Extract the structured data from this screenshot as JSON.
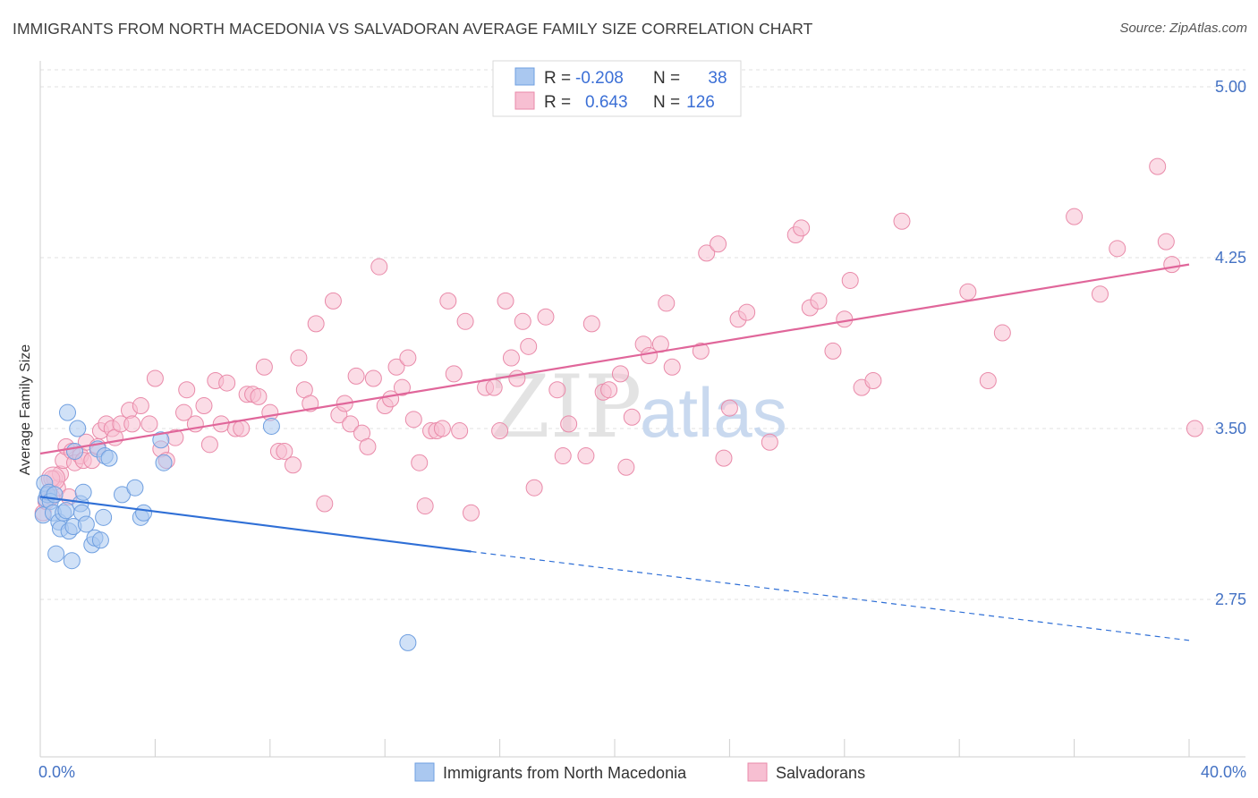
{
  "title": "IMMIGRANTS FROM NORTH MACEDONIA VS SALVADORAN AVERAGE FAMILY SIZE CORRELATION CHART",
  "source": "Source: ZipAtlas.com",
  "watermark": {
    "zip": "ZIP",
    "atlas": "atlas"
  },
  "legend_box": {
    "rows": [
      {
        "r_label": "R =",
        "r_value": "-0.208",
        "n_label": "N =",
        "n_value": "38",
        "color": "#aac8f0",
        "stroke": "#6f9fe0"
      },
      {
        "r_label": "R =",
        "r_value": "0.643",
        "n_label": "N =",
        "n_value": "126",
        "color": "#f7bfd2",
        "stroke": "#e98aa9"
      }
    ]
  },
  "bottom_legend": {
    "items": [
      {
        "label": "Immigrants from North Macedonia",
        "color": "#aac8f0",
        "stroke": "#6f9fe0"
      },
      {
        "label": "Salvadorans",
        "color": "#f7bfd2",
        "stroke": "#e98aa9"
      }
    ]
  },
  "chart_data": {
    "type": "scatter",
    "title": "IMMIGRANTS FROM NORTH MACEDONIA VS SALVADORAN AVERAGE FAMILY SIZE CORRELATION CHART",
    "xlabel": "",
    "ylabel": "Average Family Size",
    "xlim": [
      0,
      40
    ],
    "ylim": [
      2.2,
      5.1
    ],
    "x_tick_labels": [
      "0.0%",
      "40.0%"
    ],
    "y_ticks": [
      2.75,
      3.5,
      4.25,
      5.0
    ],
    "y_tick_labels": [
      "2.75",
      "3.50",
      "4.25",
      "5.00"
    ],
    "grid": true,
    "series": [
      {
        "name": "Immigrants from North Macedonia",
        "color": "#aac8f0",
        "stroke": "#6f9fe0",
        "trend": {
          "x0": 0.0,
          "y0": 3.2,
          "x1": 15.0,
          "y1": 2.96,
          "dash_to_x": 40.0,
          "dash_to_y": 2.57,
          "color": "#2f6fd6"
        },
        "points": [
          [
            0.1,
            3.12
          ],
          [
            0.15,
            3.26
          ],
          [
            0.2,
            3.19
          ],
          [
            0.25,
            3.21
          ],
          [
            0.3,
            3.22
          ],
          [
            0.35,
            3.18
          ],
          [
            0.45,
            3.13
          ],
          [
            0.55,
            2.95
          ],
          [
            0.65,
            3.09
          ],
          [
            0.7,
            3.06
          ],
          [
            0.8,
            3.13
          ],
          [
            0.9,
            3.14
          ],
          [
            1.0,
            3.05
          ],
          [
            1.1,
            2.92
          ],
          [
            1.15,
            3.07
          ],
          [
            1.2,
            3.4
          ],
          [
            1.3,
            3.5
          ],
          [
            1.4,
            3.17
          ],
          [
            1.45,
            3.13
          ],
          [
            1.5,
            3.22
          ],
          [
            0.95,
            3.57
          ],
          [
            1.8,
            2.99
          ],
          [
            1.9,
            3.02
          ],
          [
            2.0,
            3.41
          ],
          [
            2.1,
            3.01
          ],
          [
            2.25,
            3.38
          ],
          [
            2.2,
            3.11
          ],
          [
            2.4,
            3.37
          ],
          [
            2.85,
            3.21
          ],
          [
            3.3,
            3.24
          ],
          [
            3.5,
            3.11
          ],
          [
            3.6,
            3.13
          ],
          [
            4.2,
            3.45
          ],
          [
            4.3,
            3.35
          ],
          [
            8.05,
            3.51
          ],
          [
            12.8,
            2.56
          ],
          [
            0.5,
            3.21
          ],
          [
            1.6,
            3.08
          ]
        ]
      },
      {
        "name": "Salvadorans",
        "color": "#f7bfd2",
        "stroke": "#e98aa9",
        "trend": {
          "x0": 0.0,
          "y0": 3.39,
          "x1": 40.0,
          "y1": 4.22,
          "color": "#e0669a"
        },
        "points": [
          [
            0.1,
            3.13
          ],
          [
            0.2,
            3.18
          ],
          [
            0.3,
            3.22
          ],
          [
            0.4,
            3.2
          ],
          [
            0.5,
            3.28
          ],
          [
            0.6,
            3.24
          ],
          [
            0.7,
            3.3
          ],
          [
            0.8,
            3.36
          ],
          [
            0.9,
            3.42
          ],
          [
            1.0,
            3.2
          ],
          [
            1.1,
            3.4
          ],
          [
            1.2,
            3.35
          ],
          [
            1.4,
            3.38
          ],
          [
            1.5,
            3.36
          ],
          [
            1.6,
            3.44
          ],
          [
            1.8,
            3.36
          ],
          [
            2.0,
            3.42
          ],
          [
            2.1,
            3.49
          ],
          [
            2.3,
            3.52
          ],
          [
            2.5,
            3.5
          ],
          [
            2.6,
            3.46
          ],
          [
            2.8,
            3.52
          ],
          [
            3.1,
            3.58
          ],
          [
            3.2,
            3.52
          ],
          [
            3.5,
            3.6
          ],
          [
            3.8,
            3.52
          ],
          [
            4.0,
            3.72
          ],
          [
            4.2,
            3.41
          ],
          [
            4.4,
            3.36
          ],
          [
            4.7,
            3.46
          ],
          [
            5.0,
            3.57
          ],
          [
            5.1,
            3.67
          ],
          [
            5.4,
            3.52
          ],
          [
            5.7,
            3.6
          ],
          [
            5.9,
            3.43
          ],
          [
            6.1,
            3.71
          ],
          [
            6.3,
            3.52
          ],
          [
            6.5,
            3.7
          ],
          [
            6.8,
            3.5
          ],
          [
            7.0,
            3.5
          ],
          [
            7.2,
            3.65
          ],
          [
            7.4,
            3.65
          ],
          [
            7.6,
            3.64
          ],
          [
            7.8,
            3.77
          ],
          [
            8.0,
            3.57
          ],
          [
            8.3,
            3.4
          ],
          [
            8.5,
            3.4
          ],
          [
            8.8,
            3.34
          ],
          [
            9.0,
            3.81
          ],
          [
            9.2,
            3.67
          ],
          [
            9.4,
            3.61
          ],
          [
            9.6,
            3.96
          ],
          [
            9.9,
            3.17
          ],
          [
            10.2,
            4.06
          ],
          [
            10.4,
            3.56
          ],
          [
            10.6,
            3.61
          ],
          [
            10.8,
            3.52
          ],
          [
            11.0,
            3.73
          ],
          [
            11.2,
            3.48
          ],
          [
            11.4,
            3.42
          ],
          [
            11.6,
            3.72
          ],
          [
            11.8,
            4.21
          ],
          [
            12.0,
            3.6
          ],
          [
            12.2,
            3.63
          ],
          [
            12.4,
            3.77
          ],
          [
            12.6,
            3.68
          ],
          [
            12.8,
            3.81
          ],
          [
            13.0,
            3.54
          ],
          [
            13.2,
            3.35
          ],
          [
            13.4,
            3.16
          ],
          [
            13.6,
            3.49
          ],
          [
            13.8,
            3.49
          ],
          [
            14.0,
            3.5
          ],
          [
            14.2,
            4.06
          ],
          [
            14.4,
            3.74
          ],
          [
            14.6,
            3.49
          ],
          [
            14.8,
            3.97
          ],
          [
            15.0,
            3.13
          ],
          [
            15.5,
            3.68
          ],
          [
            15.8,
            3.68
          ],
          [
            16.0,
            3.49
          ],
          [
            16.2,
            4.06
          ],
          [
            16.4,
            3.81
          ],
          [
            16.6,
            3.72
          ],
          [
            16.8,
            3.97
          ],
          [
            17.0,
            3.86
          ],
          [
            17.2,
            3.24
          ],
          [
            17.6,
            3.99
          ],
          [
            18.0,
            3.67
          ],
          [
            18.2,
            3.38
          ],
          [
            18.4,
            3.52
          ],
          [
            19.0,
            3.38
          ],
          [
            19.2,
            3.96
          ],
          [
            19.6,
            3.66
          ],
          [
            19.8,
            3.67
          ],
          [
            20.2,
            3.74
          ],
          [
            20.4,
            3.33
          ],
          [
            20.6,
            3.55
          ],
          [
            21.0,
            3.87
          ],
          [
            21.2,
            3.82
          ],
          [
            21.6,
            3.87
          ],
          [
            21.8,
            4.05
          ],
          [
            22.0,
            3.77
          ],
          [
            23.0,
            3.84
          ],
          [
            23.2,
            4.27
          ],
          [
            23.6,
            4.31
          ],
          [
            23.8,
            3.37
          ],
          [
            24.0,
            3.59
          ],
          [
            24.3,
            3.98
          ],
          [
            24.6,
            4.01
          ],
          [
            25.4,
            3.44
          ],
          [
            26.3,
            4.35
          ],
          [
            26.5,
            4.38
          ],
          [
            26.8,
            4.03
          ],
          [
            27.1,
            4.06
          ],
          [
            27.6,
            3.84
          ],
          [
            28.0,
            3.98
          ],
          [
            28.2,
            4.15
          ],
          [
            28.6,
            3.68
          ],
          [
            29.0,
            3.71
          ],
          [
            30.0,
            4.41
          ],
          [
            32.3,
            4.1
          ],
          [
            33.0,
            3.71
          ],
          [
            33.5,
            3.92
          ],
          [
            36.0,
            4.43
          ],
          [
            36.9,
            4.09
          ],
          [
            37.5,
            4.29
          ],
          [
            38.9,
            4.65
          ],
          [
            39.2,
            4.32
          ],
          [
            39.4,
            4.22
          ],
          [
            40.2,
            3.5
          ],
          [
            0.4,
            3.28
          ]
        ]
      }
    ]
  }
}
